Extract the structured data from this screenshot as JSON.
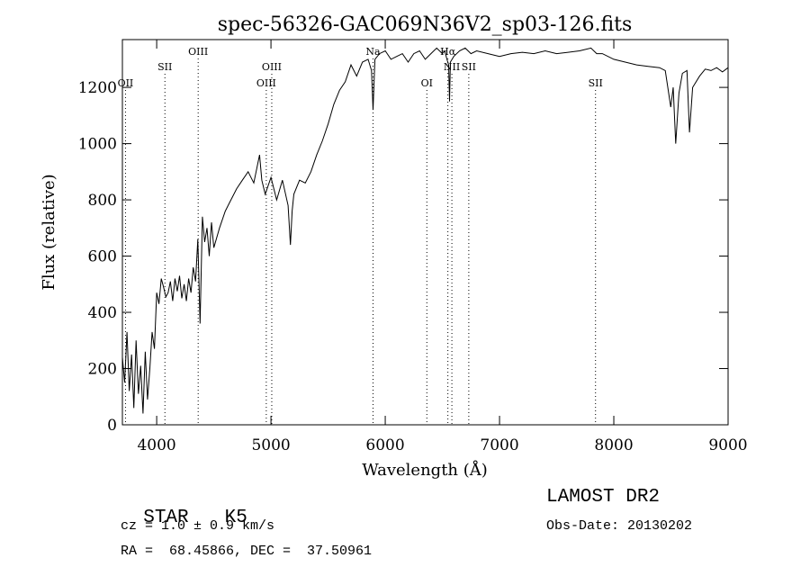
{
  "chart_data": {
    "type": "line",
    "title": "spec-56326-GAC069N36V2_sp03-126.fits",
    "xlabel": "Wavelength (Å)",
    "ylabel": "Flux (relative)",
    "xlim": [
      3700,
      9000
    ],
    "ylim": [
      0,
      1370
    ],
    "xticks": [
      4000,
      5000,
      6000,
      7000,
      8000,
      9000
    ],
    "yticks": [
      0,
      200,
      400,
      600,
      800,
      1000,
      1200
    ],
    "grid": false,
    "series": [
      {
        "x": [
          3700,
          3720,
          3740,
          3760,
          3780,
          3800,
          3820,
          3840,
          3860,
          3880,
          3900,
          3920,
          3940,
          3960,
          3980,
          4000,
          4020,
          4040,
          4060,
          4080,
          4100,
          4120,
          4140,
          4160,
          4180,
          4200,
          4220,
          4240,
          4260,
          4280,
          4300,
          4320,
          4340,
          4360,
          4380,
          4400,
          4420,
          4440,
          4460,
          4480,
          4500,
          4550,
          4600,
          4650,
          4700,
          4750,
          4800,
          4850,
          4900,
          4920,
          4950,
          5000,
          5050,
          5100,
          5150,
          5170,
          5185,
          5200,
          5250,
          5300,
          5350,
          5400,
          5450,
          5500,
          5550,
          5600,
          5650,
          5700,
          5750,
          5800,
          5850,
          5880,
          5893,
          5910,
          5950,
          6000,
          6050,
          6100,
          6150,
          6200,
          6250,
          6300,
          6350,
          6400,
          6450,
          6500,
          6520,
          6540,
          6555,
          6563,
          6570,
          6600,
          6650,
          6700,
          6750,
          6800,
          6900,
          7000,
          7100,
          7200,
          7300,
          7400,
          7500,
          7600,
          7700,
          7800,
          7850,
          7900,
          8000,
          8100,
          8200,
          8300,
          8400,
          8450,
          8498,
          8520,
          8542,
          8570,
          8600,
          8640,
          8662,
          8690,
          8750,
          8800,
          8850,
          8900,
          8950,
          9000
        ],
        "y": [
          240,
          150,
          330,
          120,
          250,
          60,
          300,
          110,
          210,
          40,
          260,
          90,
          200,
          330,
          270,
          470,
          430,
          520,
          490,
          455,
          470,
          510,
          440,
          520,
          475,
          530,
          450,
          500,
          440,
          520,
          470,
          560,
          510,
          660,
          360,
          740,
          650,
          700,
          600,
          720,
          630,
          700,
          760,
          800,
          840,
          870,
          900,
          860,
          960,
          870,
          820,
          880,
          800,
          870,
          780,
          640,
          760,
          820,
          870,
          860,
          900,
          960,
          1010,
          1070,
          1140,
          1190,
          1220,
          1280,
          1240,
          1290,
          1300,
          1260,
          1120,
          1300,
          1320,
          1330,
          1300,
          1310,
          1320,
          1290,
          1320,
          1330,
          1300,
          1320,
          1340,
          1320,
          1330,
          1300,
          1280,
          1150,
          1290,
          1310,
          1330,
          1340,
          1320,
          1330,
          1320,
          1310,
          1320,
          1325,
          1320,
          1330,
          1320,
          1325,
          1330,
          1340,
          1320,
          1320,
          1300,
          1290,
          1280,
          1275,
          1270,
          1260,
          1130,
          1200,
          1000,
          1180,
          1250,
          1260,
          1040,
          1200,
          1240,
          1265,
          1260,
          1270,
          1255,
          1270
        ]
      }
    ],
    "line_labels": [
      {
        "label": "OII",
        "x": 3727,
        "row": 3
      },
      {
        "label": "SII",
        "x": 4072,
        "row": 2
      },
      {
        "label": "OIII",
        "x": 4363,
        "row": 1
      },
      {
        "label": "OIII",
        "x": 4959,
        "row": 3
      },
      {
        "label": "OIII",
        "x": 5007,
        "row": 2
      },
      {
        "label": "Na",
        "x": 5893,
        "row": 1
      },
      {
        "label": "OI",
        "x": 6364,
        "row": 3
      },
      {
        "label": "Hα",
        "x": 6548,
        "row": 1
      },
      {
        "label": "NII",
        "x": 6583,
        "row": 2
      },
      {
        "label": "SII",
        "x": 6731,
        "row": 2
      },
      {
        "label": "SII",
        "x": 7840,
        "row": 3
      }
    ]
  },
  "info": {
    "class_label": "STAR",
    "subclass": "K5",
    "cz": "cz = 1.0 ± 0.9 km/s",
    "coords": "RA =  68.45866, DEC =  37.50961",
    "survey": "LAMOST DR2",
    "obs_date": "Obs-Date: 20130202"
  }
}
